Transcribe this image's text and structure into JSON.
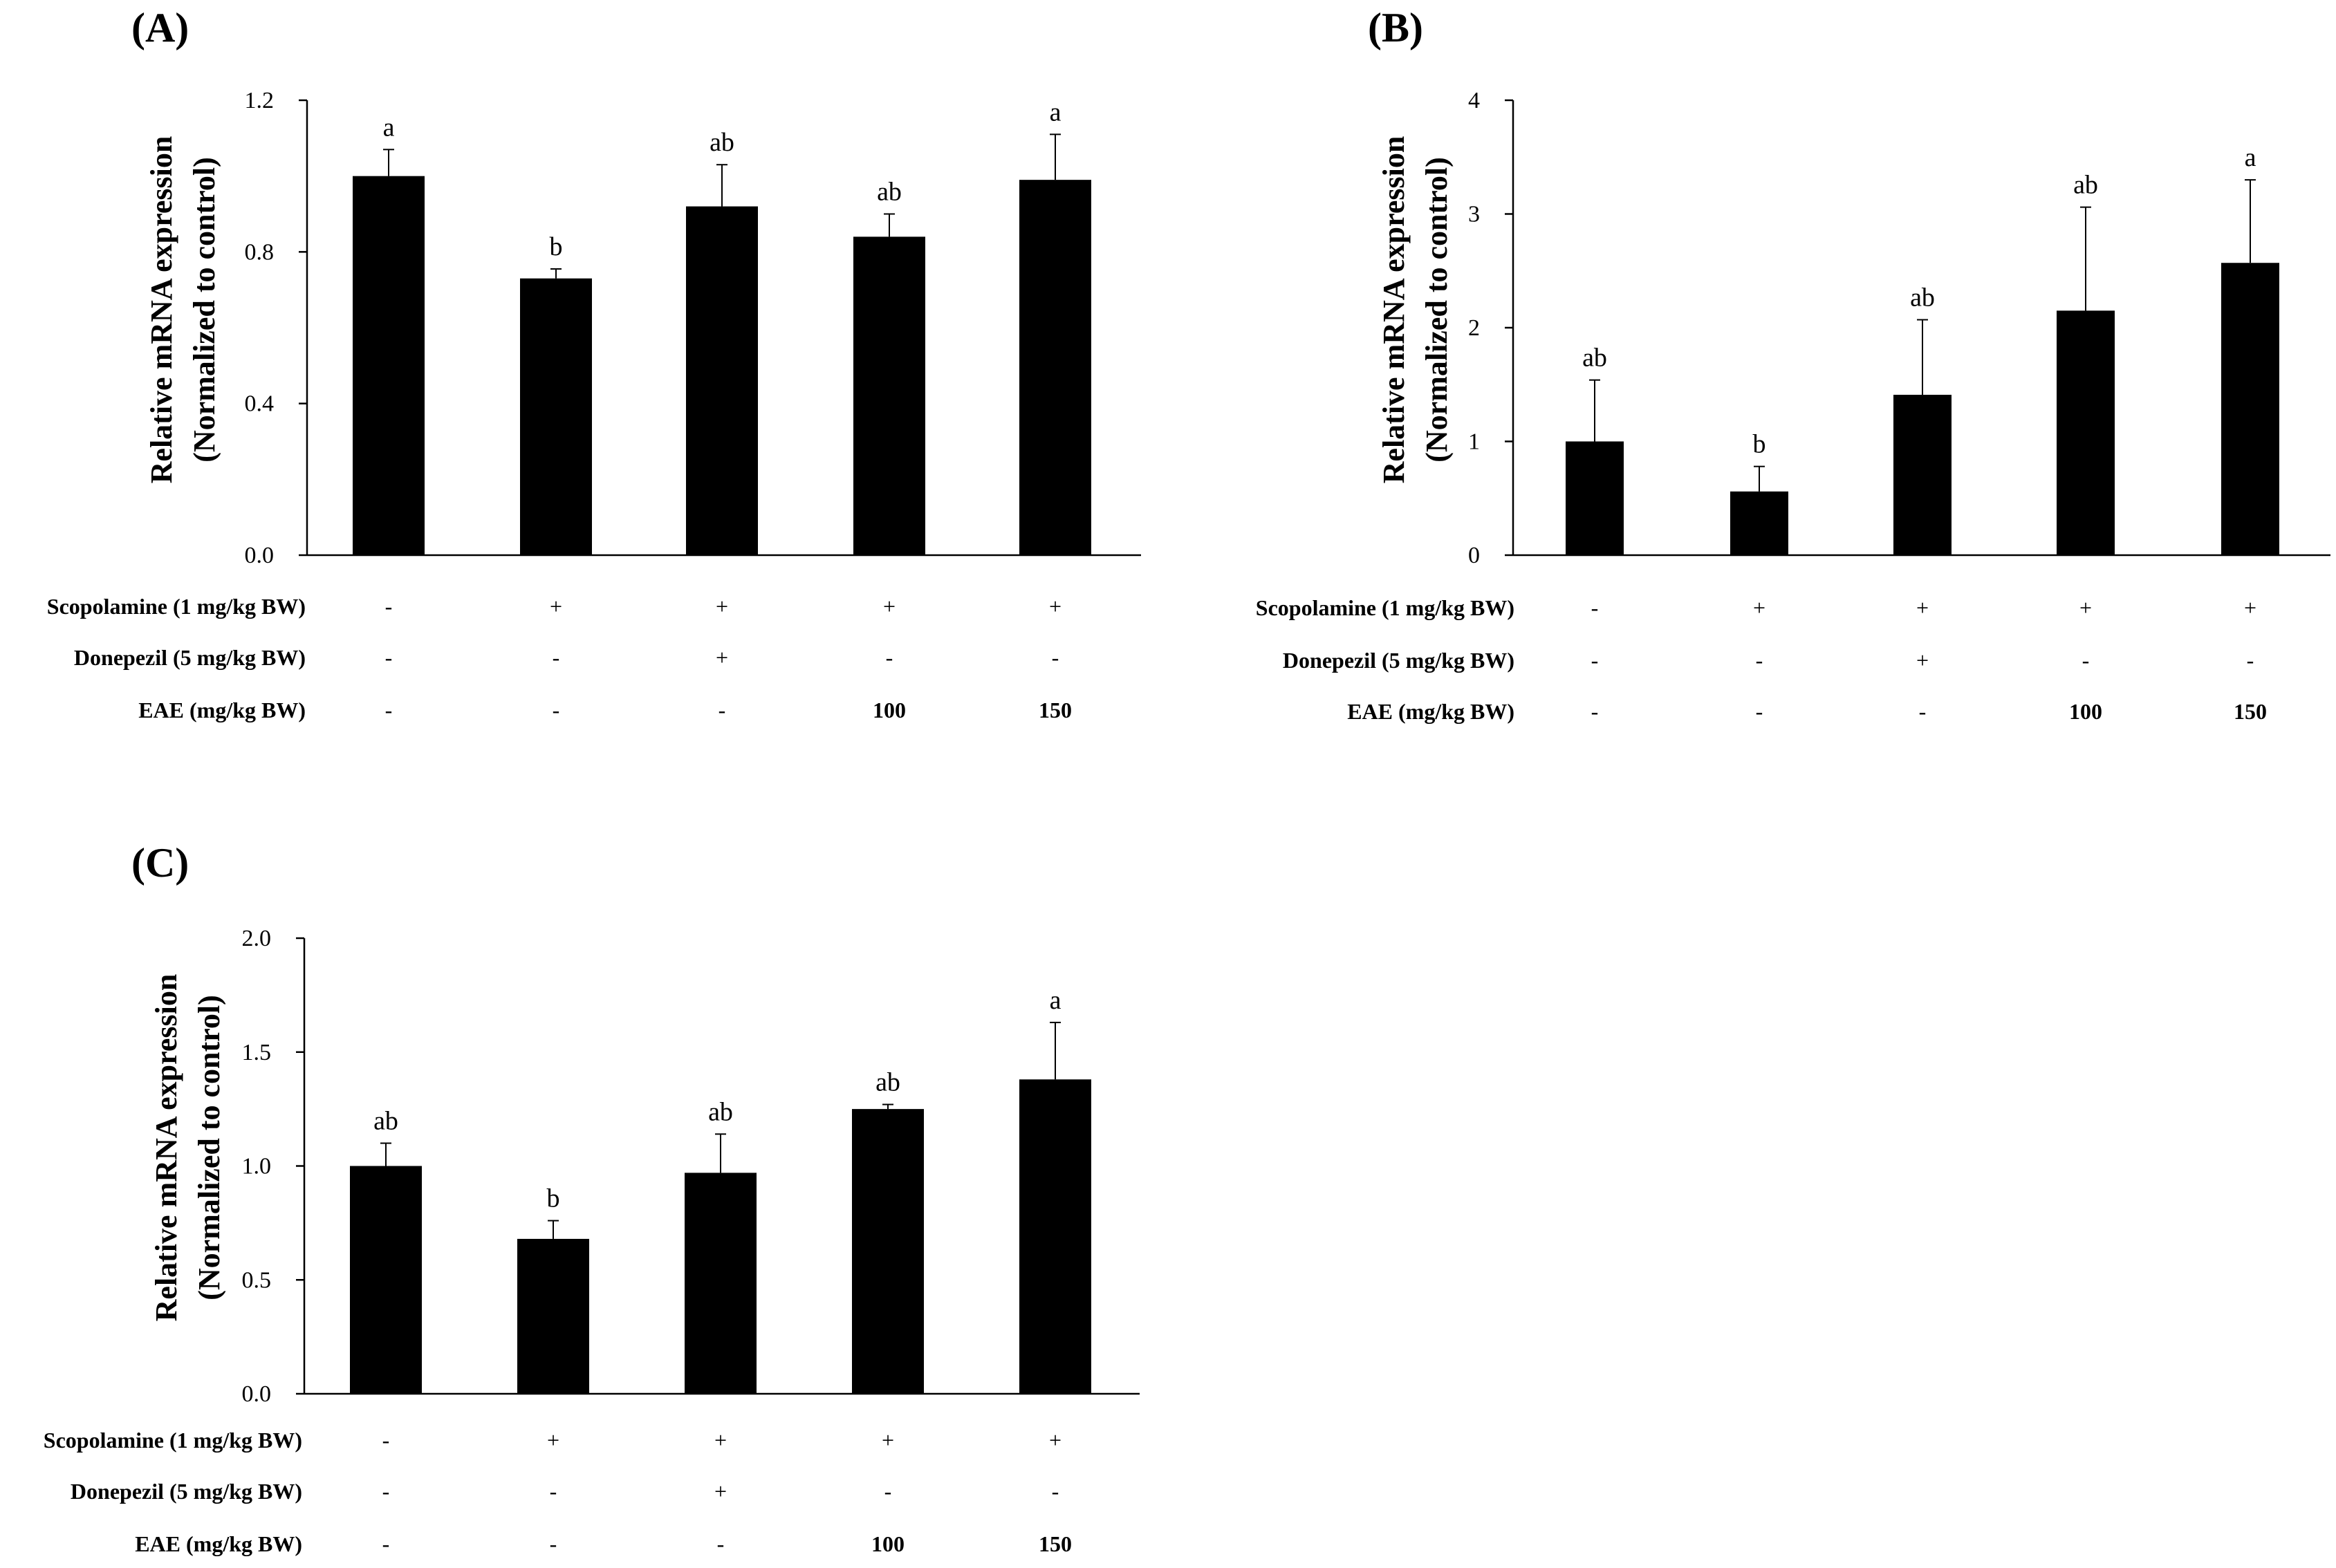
{
  "chart_data": [
    {
      "type": "bar",
      "panel": "(A)",
      "ylabel": [
        "Relative mRNA expression",
        "(Normalized to control)"
      ],
      "ylim": [
        0.0,
        1.2
      ],
      "yticks": [
        "0.0",
        "0.4",
        "0.8",
        "1.2"
      ],
      "ytick_values": [
        0.0,
        0.4,
        0.8,
        1.2
      ],
      "values": [
        1.0,
        0.73,
        0.92,
        0.84,
        0.99
      ],
      "errors": [
        0.07,
        0.025,
        0.11,
        0.06,
        0.12
      ],
      "labels": [
        "a",
        "b",
        "ab",
        "ab",
        "a"
      ],
      "treatments": [
        {
          "name": "Scopolamine (1 mg/kg BW)",
          "cells": [
            "-",
            "+",
            "+",
            "+",
            "+"
          ]
        },
        {
          "name": "Donepezil (5 mg/kg BW)",
          "cells": [
            "-",
            "-",
            "+",
            "-",
            "-"
          ]
        },
        {
          "name": "EAE (mg/kg BW)",
          "cells": [
            "-",
            "-",
            "-",
            "100",
            "150"
          ]
        }
      ]
    },
    {
      "type": "bar",
      "panel": "(B)",
      "ylabel": [
        "Relative mRNA expression",
        "(Normalized to control)"
      ],
      "ylim": [
        0,
        4
      ],
      "yticks": [
        "0",
        "1",
        "2",
        "3",
        "4"
      ],
      "ytick_values": [
        0,
        1,
        2,
        3,
        4
      ],
      "values": [
        1.0,
        0.56,
        1.41,
        2.15,
        2.57
      ],
      "errors": [
        0.54,
        0.22,
        0.66,
        0.91,
        0.73
      ],
      "labels": [
        "ab",
        "b",
        "ab",
        "ab",
        "a"
      ],
      "treatments": [
        {
          "name": "Scopolamine (1 mg/kg BW)",
          "cells": [
            "-",
            "+",
            "+",
            "+",
            "+"
          ]
        },
        {
          "name": "Donepezil (5 mg/kg BW)",
          "cells": [
            "-",
            "-",
            "+",
            "-",
            "-"
          ]
        },
        {
          "name": "EAE (mg/kg BW)",
          "cells": [
            "-",
            "-",
            "-",
            "100",
            "150"
          ]
        }
      ]
    },
    {
      "type": "bar",
      "panel": "(C)",
      "ylabel": [
        "Relative mRNA expression",
        "(Normalized to control)"
      ],
      "ylim": [
        0.0,
        2.0
      ],
      "yticks": [
        "0.0",
        "0.5",
        "1.0",
        "1.5",
        "2.0"
      ],
      "ytick_values": [
        0.0,
        0.5,
        1.0,
        1.5,
        2.0
      ],
      "values": [
        1.0,
        0.68,
        0.97,
        1.25,
        1.38
      ],
      "errors": [
        0.1,
        0.08,
        0.17,
        0.02,
        0.25
      ],
      "labels": [
        "ab",
        "b",
        "ab",
        "ab",
        "a"
      ],
      "treatments": [
        {
          "name": "Scopolamine (1 mg/kg BW)",
          "cells": [
            "-",
            "+",
            "+",
            "+",
            "+"
          ]
        },
        {
          "name": "Donepezil (5 mg/kg BW)",
          "cells": [
            "-",
            "-",
            "+",
            "-",
            "-"
          ]
        },
        {
          "name": "EAE (mg/kg BW)",
          "cells": [
            "-",
            "-",
            "-",
            "100",
            "150"
          ]
        }
      ]
    }
  ]
}
